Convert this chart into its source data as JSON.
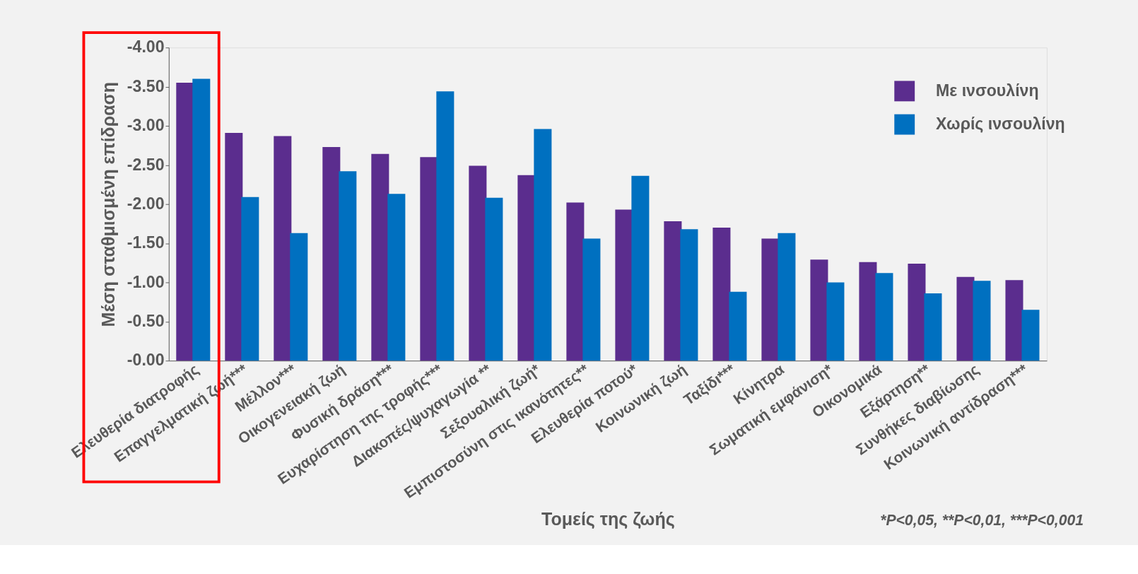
{
  "chart_data": {
    "type": "bar",
    "xlabel": "Τομείς της ζωής",
    "ylabel": "Μέση σταθμισμένη επίδραση",
    "categories": [
      "Ελευθερία διατροφής",
      "Επαγγελματική ζωή***",
      "Μέλλον***",
      "Οικογενειακή ζωή",
      "Φυσική δράση***",
      "Ευχαρίστηση της τροφής***",
      "Διακοπές/ψυχαγωγία **",
      "Σεξουαλική ζωή*",
      "Εμπιστοσύνη στις ικανότητες**",
      "Ελευθερία ποτού*",
      "Κοινωνική ζωή",
      "Ταξίδι***",
      "Κίνητρα",
      "Σωματική εμφάνιση*",
      "Οικονομικά",
      "Εξάρτηση**",
      "Συνθήκες διαβίωσης",
      "Κοινωνική αντίδραση***"
    ],
    "series": [
      {
        "name": "Με ινσουλίνη",
        "color": "#5b2d8e",
        "values": [
          -3.55,
          -2.91,
          -2.87,
          -2.73,
          -2.64,
          -2.6,
          -2.49,
          -2.37,
          -2.02,
          -1.93,
          -1.78,
          -1.7,
          -1.56,
          -1.29,
          -1.26,
          -1.24,
          -1.07,
          -1.03
        ]
      },
      {
        "name": "Χωρίς ινσουλίνη",
        "color": "#0070c0",
        "values": [
          -3.6,
          -2.09,
          -1.63,
          -2.42,
          -2.13,
          -3.44,
          -2.08,
          -2.96,
          -1.56,
          -2.36,
          -1.68,
          -0.88,
          -1.63,
          -1.0,
          -1.12,
          -0.86,
          -1.02,
          -0.65
        ]
      }
    ],
    "ylim": [
      0,
      -4
    ],
    "yticks": [
      {
        "value": 0,
        "label": "-0.00"
      },
      {
        "value": -0.5,
        "label": "-0.50"
      },
      {
        "value": -1,
        "label": "-1.00"
      },
      {
        "value": -1.5,
        "label": "-1.50"
      },
      {
        "value": -2,
        "label": "-2.00"
      },
      {
        "value": -2.5,
        "label": "-2.50"
      },
      {
        "value": -3,
        "label": "-3.00"
      },
      {
        "value": -3.5,
        "label": "-3.50"
      },
      {
        "value": -4,
        "label": "-4.00"
      }
    ],
    "grid": false,
    "legend": "top right",
    "annotations": [
      "*P<0,05,  **P<0,01,  ***P<0,001"
    ]
  }
}
